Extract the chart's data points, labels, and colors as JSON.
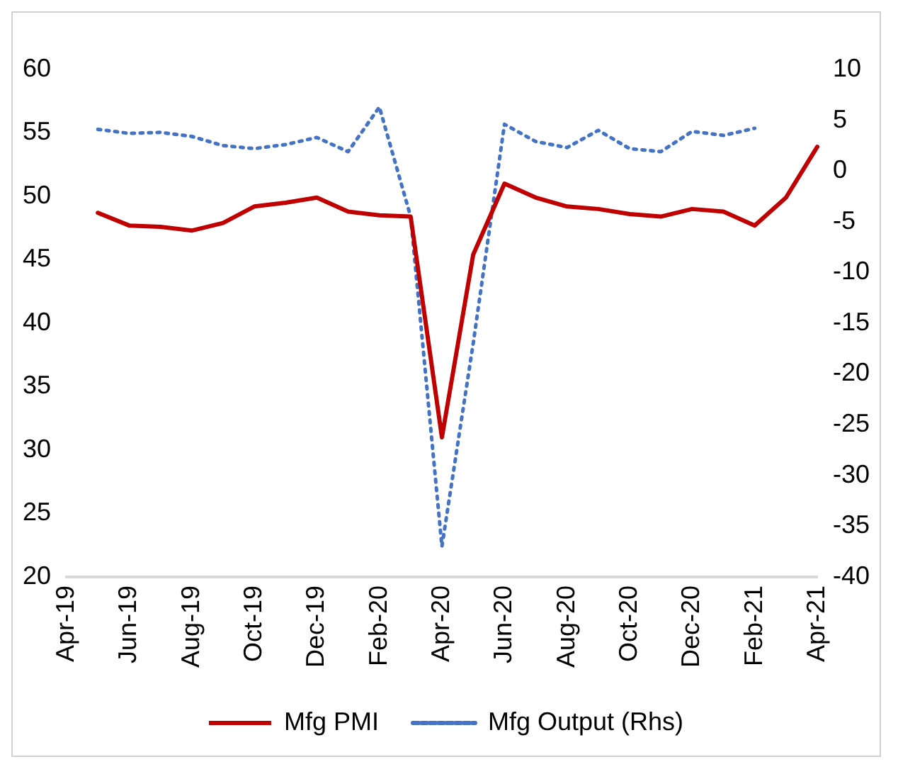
{
  "chart_data": {
    "type": "line",
    "categories": [
      "Apr-19",
      null,
      "Jun-19",
      null,
      "Aug-19",
      null,
      "Oct-19",
      null,
      "Dec-19",
      null,
      "Feb-20",
      null,
      "Apr-20",
      null,
      "Jun-20",
      null,
      "Aug-20",
      null,
      "Oct-20",
      null,
      "Dec-20",
      null,
      "Feb-21",
      null,
      "Apr-21"
    ],
    "series": [
      {
        "name": "Mfg PMI",
        "color": "#c00000",
        "line_style": "solid",
        "values": [
          null,
          48.7,
          47.7,
          47.6,
          47.3,
          47.9,
          49.2,
          49.5,
          49.9,
          48.8,
          48.5,
          48.4,
          31.0,
          45.4,
          51.0,
          49.9,
          49.2,
          49.0,
          48.6,
          48.4,
          49.0,
          48.8,
          47.7,
          49.9,
          53.9
        ]
      },
      {
        "name": "Mfg Output (Rhs)",
        "color": "#4472c4",
        "line_style": "dotted",
        "axis": "y2",
        "values": [
          null,
          4.1,
          3.7,
          3.8,
          3.4,
          2.5,
          2.2,
          2.6,
          3.3,
          1.9,
          6.3,
          -4.5,
          -37,
          -17,
          4.6,
          2.9,
          2.3,
          4.0,
          2.2,
          1.9,
          3.9,
          3.5,
          4.2,
          null,
          null
        ]
      }
    ],
    "ylim": [
      20,
      60
    ],
    "yticks": [
      20,
      25,
      30,
      35,
      40,
      45,
      50,
      55,
      60
    ],
    "y2lim": [
      -40,
      10
    ],
    "y2ticks": [
      -40,
      -35,
      -30,
      -25,
      -20,
      -15,
      -10,
      -5,
      0,
      5,
      10
    ],
    "grid": false,
    "legend": "bottom",
    "marker": "none"
  }
}
